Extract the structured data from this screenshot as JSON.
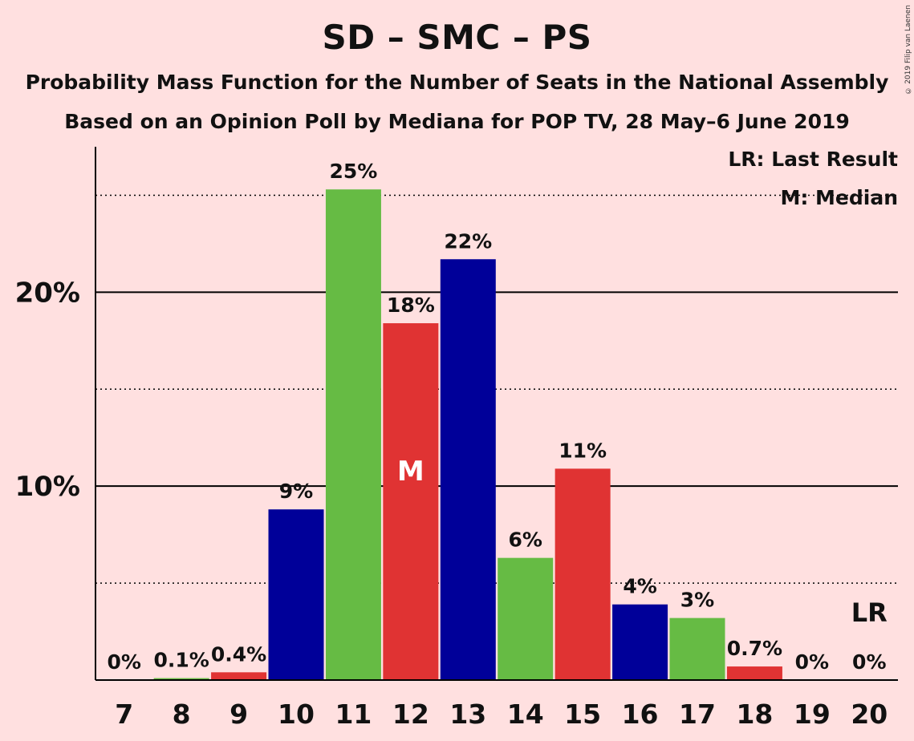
{
  "header": {
    "title": "SD – SMC – PS",
    "subtitle_1": "Probability Mass Function for the Number of Seats in the National Assembly",
    "subtitle_2": "Based on an Opinion Poll by Mediana for POP TV, 28 May–6 June 2019"
  },
  "legend": {
    "last_result": "LR: Last Result",
    "median": "M: Median"
  },
  "copyright": "© 2019 Filip van Laenen",
  "colors": {
    "background": "#FFE0E0",
    "blue": "#000099",
    "green": "#66BB44",
    "red": "#E03333"
  },
  "chart_data": {
    "type": "bar",
    "categories": [
      "7",
      "8",
      "9",
      "10",
      "11",
      "12",
      "13",
      "14",
      "15",
      "16",
      "17",
      "18",
      "19",
      "20"
    ],
    "values": [
      0,
      0.1,
      0.4,
      8.8,
      25.3,
      18.4,
      21.7,
      6.3,
      10.9,
      3.9,
      3.2,
      0.7,
      0,
      0
    ],
    "bar_colors": [
      "blue",
      "green",
      "red",
      "blue",
      "green",
      "red",
      "blue",
      "green",
      "red",
      "blue",
      "green",
      "red",
      "blue",
      "green"
    ],
    "data_labels": [
      "0%",
      "0.1%",
      "0.4%",
      "9%",
      "25%",
      "18%",
      "22%",
      "6%",
      "11%",
      "4%",
      "3%",
      "0.7%",
      "0%",
      "0%"
    ],
    "ylim": [
      0,
      27.5
    ],
    "y_ticks": [
      {
        "value": 10,
        "label": "10%"
      },
      {
        "value": 20,
        "label": "20%"
      }
    ],
    "y_minor_gridlines": [
      5,
      15,
      25
    ],
    "median_category": "12",
    "median_marker": "M",
    "last_result_category": "20",
    "last_result_marker": "LR"
  }
}
